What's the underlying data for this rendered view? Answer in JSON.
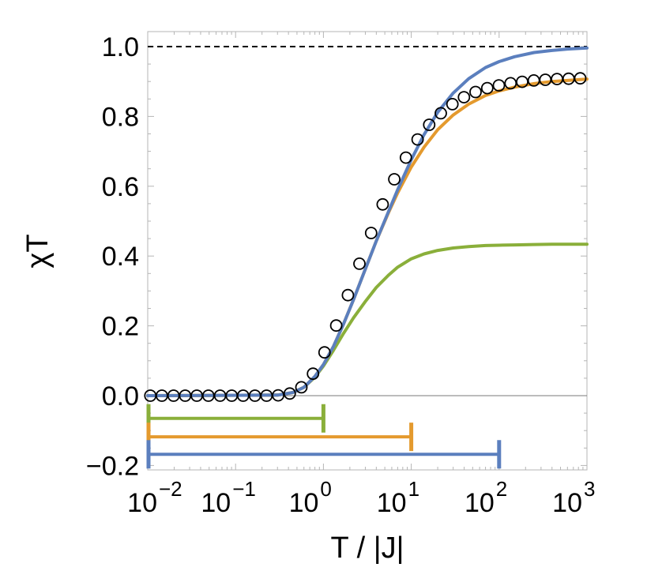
{
  "chart_data": {
    "type": "line",
    "title": "",
    "xlabel": "T / |J|",
    "ylabel": "χT",
    "x_scale": "log",
    "xlim": [
      0.01,
      1000
    ],
    "ylim": [
      -0.2,
      1.05
    ],
    "x_ticks": [
      {
        "base": "10",
        "exp": "−2",
        "value": 0.01
      },
      {
        "base": "10",
        "exp": "−1",
        "value": 0.1
      },
      {
        "base": "10",
        "exp": "0",
        "value": 1
      },
      {
        "base": "10",
        "exp": "1",
        "value": 10
      },
      {
        "base": "10",
        "exp": "2",
        "value": 100
      },
      {
        "base": "10",
        "exp": "3",
        "value": 1000
      }
    ],
    "y_ticks": [
      {
        "label": "−0.2",
        "value": -0.2
      },
      {
        "label": "0.0",
        "value": 0.0
      },
      {
        "label": "0.2",
        "value": 0.2
      },
      {
        "label": "0.4",
        "value": 0.4
      },
      {
        "label": "0.6",
        "value": 0.6
      },
      {
        "label": "0.8",
        "value": 0.8
      },
      {
        "label": "1.0",
        "value": 1.0
      }
    ],
    "reference_line": {
      "y": 1.0,
      "style": "dashed",
      "color": "#000000"
    },
    "scatter": {
      "marker": "open-circle",
      "color": "#000000",
      "x": [
        0.0107,
        0.0145,
        0.0197,
        0.0267,
        0.0362,
        0.0491,
        0.0666,
        0.0903,
        0.122,
        0.166,
        0.225,
        0.305,
        0.414,
        0.561,
        0.761,
        1.03,
        1.4,
        1.9,
        2.57,
        3.49,
        4.73,
        6.41,
        8.69,
        11.8,
        16.0,
        21.7,
        29.4,
        39.8,
        54.0,
        73.3,
        99.3,
        135,
        183,
        248,
        336,
        456,
        618,
        838
      ],
      "y": [
        0.0,
        0.0,
        0.0,
        0.0,
        0.0,
        0.0,
        0.0,
        0.0,
        0.0,
        0.0,
        0.0,
        0.001,
        0.006,
        0.024,
        0.063,
        0.124,
        0.201,
        0.288,
        0.378,
        0.466,
        0.548,
        0.62,
        0.682,
        0.734,
        0.776,
        0.809,
        0.835,
        0.855,
        0.87,
        0.881,
        0.889,
        0.895,
        0.899,
        0.903,
        0.905,
        0.907,
        0.908,
        0.909
      ]
    },
    "series": [
      {
        "color": "#5b7fbe",
        "x": [
          0.01,
          0.3,
          0.45,
          0.6,
          0.8,
          1,
          1.3,
          1.7,
          2.2,
          3,
          4,
          5.5,
          7,
          10,
          14,
          20,
          30,
          45,
          70,
          100,
          150,
          250,
          400,
          600,
          1000
        ],
        "y": [
          0,
          0.0015,
          0.009,
          0.024,
          0.055,
          0.089,
          0.141,
          0.206,
          0.275,
          0.363,
          0.443,
          0.527,
          0.59,
          0.676,
          0.748,
          0.812,
          0.867,
          0.908,
          0.94,
          0.957,
          0.971,
          0.983,
          0.989,
          0.993,
          0.996
        ]
      },
      {
        "color": "#e49a2e",
        "x": [
          0.01,
          0.3,
          0.45,
          0.6,
          0.8,
          1,
          1.3,
          1.7,
          2.2,
          3,
          4,
          5.5,
          7,
          10,
          14,
          20,
          30,
          45,
          70,
          100,
          150,
          250,
          400,
          600,
          1000
        ],
        "y": [
          0,
          0.0015,
          0.009,
          0.024,
          0.055,
          0.089,
          0.141,
          0.206,
          0.275,
          0.363,
          0.443,
          0.524,
          0.581,
          0.655,
          0.712,
          0.762,
          0.804,
          0.835,
          0.86,
          0.873,
          0.884,
          0.894,
          0.9,
          0.903,
          0.907
        ]
      },
      {
        "color": "#8aaf3a",
        "x": [
          0.01,
          0.3,
          0.45,
          0.6,
          0.8,
          1,
          1.3,
          1.7,
          2.2,
          3,
          4,
          5.5,
          7,
          10,
          14,
          20,
          30,
          45,
          70,
          100,
          150,
          250,
          400,
          600,
          1000
        ],
        "y": [
          0,
          0.0015,
          0.009,
          0.024,
          0.053,
          0.085,
          0.13,
          0.179,
          0.223,
          0.27,
          0.31,
          0.345,
          0.368,
          0.392,
          0.406,
          0.416,
          0.423,
          0.427,
          0.43,
          0.431,
          0.432,
          0.433,
          0.434,
          0.434,
          0.434
        ]
      }
    ],
    "ranges": [
      {
        "color": "#8aaf3a",
        "from": 0.01,
        "to": 1,
        "y": -0.065
      },
      {
        "color": "#e49a2e",
        "from": 0.01,
        "to": 10,
        "y": -0.118
      },
      {
        "color": "#5b7fbe",
        "from": 0.01,
        "to": 100,
        "y": -0.168
      }
    ],
    "grid": false,
    "legend": "none"
  }
}
